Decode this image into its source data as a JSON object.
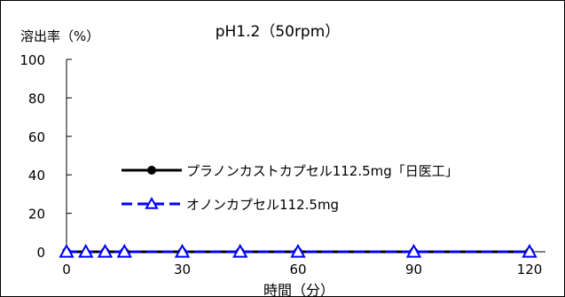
{
  "chart_data": {
    "type": "line",
    "title": "pH1.2（50rpm）",
    "ylabel": "溶出率（%）",
    "xlabel": "時間（分）",
    "xlim": [
      0,
      120
    ],
    "ylim": [
      0,
      100
    ],
    "xticks": [
      0,
      30,
      60,
      90,
      120
    ],
    "yticks": [
      0,
      20,
      40,
      60,
      80,
      100
    ],
    "grid": false,
    "legend_position": "center-right",
    "series": [
      {
        "name": "プラノンカストカプセル112.5mg「日医工」",
        "color": "#000000",
        "line_style": "solid",
        "marker": "circle",
        "x": [
          0,
          10,
          15,
          30,
          45,
          60,
          90,
          120
        ],
        "y": [
          0,
          0,
          0,
          0,
          0,
          0,
          0,
          0
        ]
      },
      {
        "name": "オノンカプセル112.5mg",
        "color": "#0000ff",
        "line_style": "dashed",
        "marker": "triangle-open",
        "x": [
          0,
          5,
          10,
          15,
          30,
          45,
          60,
          90,
          120
        ],
        "y": [
          0,
          0,
          0,
          0,
          0,
          0,
          0,
          0,
          0
        ]
      }
    ]
  }
}
